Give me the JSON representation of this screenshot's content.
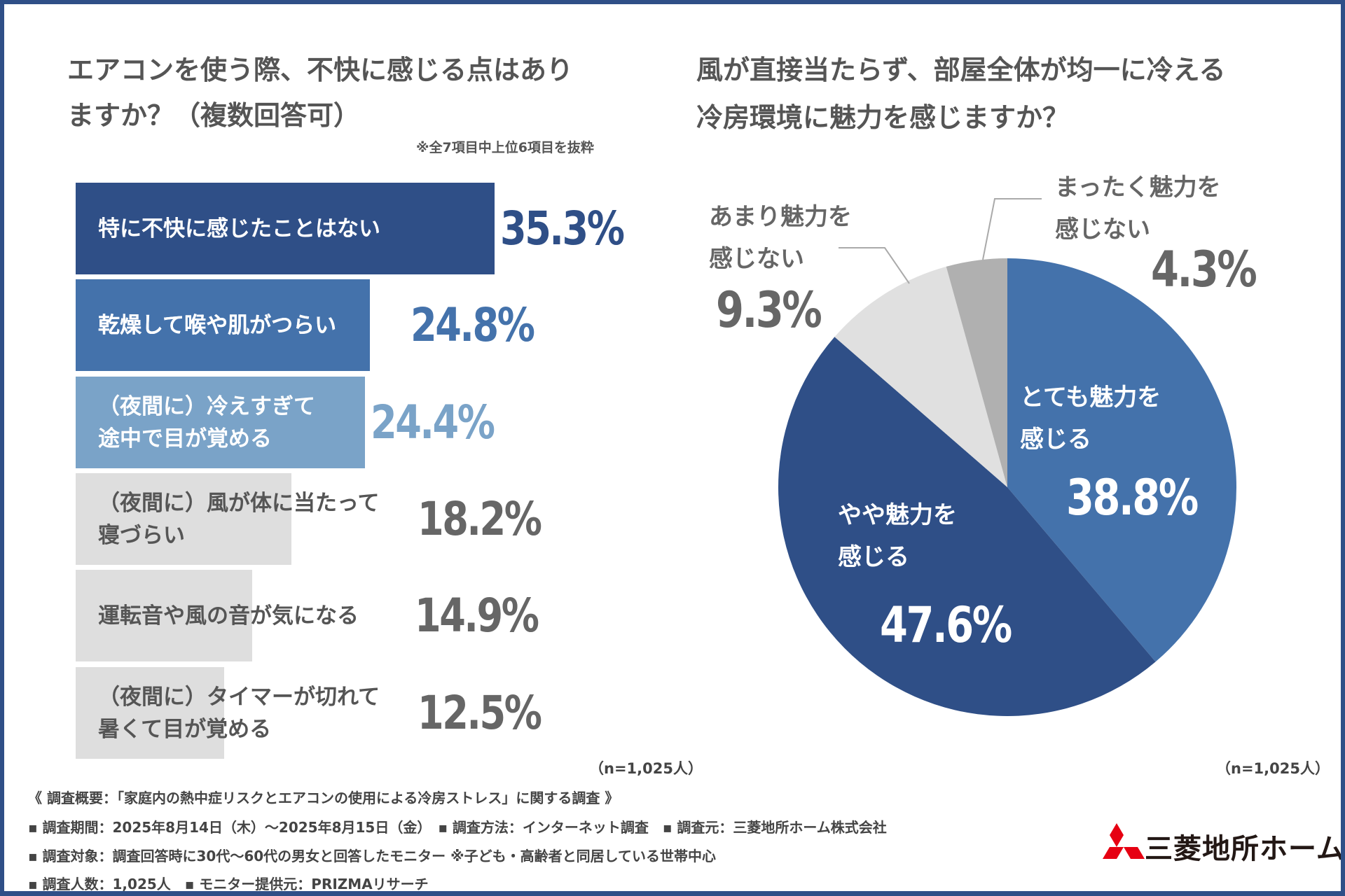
{
  "left_chart": {
    "title_line1": "エアコンを使う際、不快に感じる点はあり",
    "title_line2": "ますか？（複数回答可）",
    "note": "※全7項目中上位6項目を抜粋",
    "sample": "（n=1,025人）"
  },
  "right_chart": {
    "title_line1": "風が直接当たらず、部屋全体が均一に冷える",
    "title_line2": "冷房環境に魅力を感じますか？",
    "sample": "（n=1,025人）"
  },
  "chart_data": [
    {
      "type": "bar",
      "orientation": "horizontal",
      "title": "エアコンを使う際、不快に感じる点はありますか？（複数回答可）",
      "unit": "%",
      "categories": [
        [
          "特に不快に感じたことはない"
        ],
        [
          "乾燥して喉や肌がつらい"
        ],
        [
          "（夜間に）冷えすぎて",
          "途中で目が覚める"
        ],
        [
          "（夜間に）風が体に当たって",
          "寝づらい"
        ],
        [
          "運転音や風の音が気になる"
        ],
        [
          "（夜間に）タイマーが切れて",
          "暑くて目が覚める"
        ]
      ],
      "values": [
        35.3,
        24.8,
        24.4,
        18.2,
        14.9,
        12.5
      ],
      "labels": [
        "35.3%",
        "24.8%",
        "24.4%",
        "18.2%",
        "14.9%",
        "12.5%"
      ],
      "colors": [
        "#2f4f87",
        "#4472ab",
        "#7aa3c8",
        "#dedede",
        "#dedede",
        "#dedede"
      ],
      "label_colors": [
        "#ffffff",
        "#ffffff",
        "#ffffff",
        "#555555",
        "#555555",
        "#555555"
      ],
      "value_colors": [
        "#2f4f87",
        "#4472ab",
        "#7aa3c8",
        "#666666",
        "#666666",
        "#666666"
      ],
      "xlim": [
        0,
        35.3
      ]
    },
    {
      "type": "pie",
      "title": "風が直接当たらず、部屋全体が均一に冷える冷房環境に魅力を感じますか？",
      "slices": [
        {
          "label": [
            "とても魅力を",
            "感じる"
          ],
          "value": 38.8,
          "text": "38.8%",
          "color": "#4472ab"
        },
        {
          "label": [
            "やや魅力を",
            "感じる"
          ],
          "value": 47.6,
          "text": "47.6%",
          "color": "#2f4f87"
        },
        {
          "label": [
            "あまり魅力を",
            "感じない"
          ],
          "value": 9.3,
          "text": "9.3%",
          "color": "#e0e0e0"
        },
        {
          "label": [
            "まったく魅力を",
            "感じない"
          ],
          "value": 4.3,
          "text": "4.3%",
          "color": "#b0b0b0"
        }
      ],
      "start": "12 o'clock",
      "direction": "clockwise"
    }
  ],
  "footer": {
    "summary": "《 調査概要：「家庭内の熱中症リスクとエアコンの使用による冷房ストレス」に関する調査 》",
    "line1": "▪ 調査期間：2025年8月14日（木）～2025年8月15日（金）　▪ 調査方法：インターネット調査　▪ 調査元：三菱地所ホーム株式会社",
    "line2": "▪ 調査対象：調査回答時に30代～60代の男女と回答したモニター ※子ども・高齢者と同居している世帯中心",
    "line3": "▪ 調査人数：1,025人　▪ モニター提供元：PRIZMAリサーチ"
  },
  "logo": {
    "text": "三菱地所ホーム",
    "mark_color": "#e60012"
  },
  "colors": {
    "border": "#2f4f87",
    "text_dark": "#555555"
  }
}
